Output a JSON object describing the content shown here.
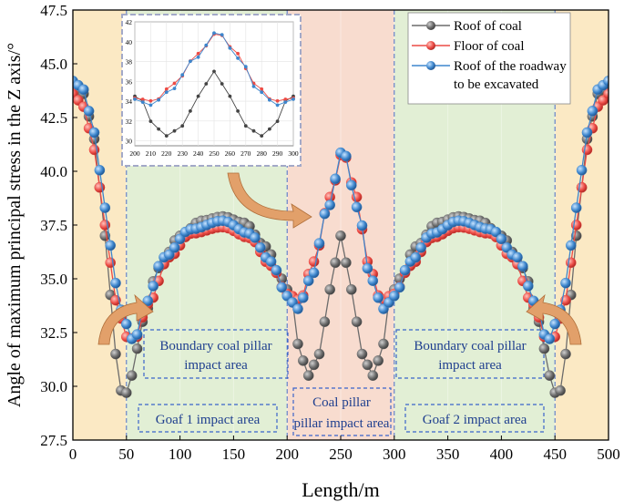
{
  "chart_data": {
    "type": "line",
    "title": "",
    "xlabel": "Length/m",
    "ylabel": "Angle of maximum principal stress in the Z axis/°",
    "xlim": [
      0,
      500
    ],
    "ylim": [
      27.5,
      47.5
    ],
    "x_ticks": [
      "0",
      "50",
      "100",
      "150",
      "200",
      "250",
      "300",
      "350",
      "400",
      "450",
      "500"
    ],
    "y_ticks": [
      "27.5",
      "30.0",
      "32.5",
      "35.0",
      "37.5",
      "40.0",
      "42.5",
      "45.0",
      "47.5"
    ],
    "regions": [
      {
        "from": 0,
        "to": 50,
        "color": "#fbe9c4"
      },
      {
        "from": 50,
        "to": 200,
        "color": "#e2efd5"
      },
      {
        "from": 200,
        "to": 300,
        "color": "#f8dccf"
      },
      {
        "from": 300,
        "to": 450,
        "color": "#e2efd5"
      },
      {
        "from": 450,
        "to": 500,
        "color": "#fbe9c4"
      }
    ],
    "annotations": {
      "boundary_left": [
        "Boundary coal pillar",
        "impact area"
      ],
      "boundary_right": [
        "Boundary coal pillar",
        "impact area"
      ],
      "goaf1": "Goaf 1 impact area",
      "goaf2": "Goaf 2 impact area",
      "coal_pillar": [
        "Coal pillar",
        "pillar impact area"
      ]
    },
    "series": [
      {
        "name": "Roof of coal",
        "color": "#6b6b6b",
        "points": [
          [
            0,
            44
          ],
          [
            10,
            43.6
          ],
          [
            20,
            41.5
          ],
          [
            30,
            37
          ],
          [
            40,
            31.5
          ],
          [
            45,
            29.8
          ],
          [
            50,
            29.7
          ],
          [
            55,
            30.5
          ],
          [
            65,
            33
          ],
          [
            80,
            35.5
          ],
          [
            100,
            37
          ],
          [
            120,
            37.7
          ],
          [
            140,
            37.9
          ],
          [
            160,
            37.6
          ],
          [
            180,
            36.5
          ],
          [
            195,
            35
          ],
          [
            205,
            34
          ],
          [
            212,
            31.5
          ],
          [
            220,
            30.5
          ],
          [
            230,
            31.5
          ],
          [
            240,
            34.5
          ],
          [
            250,
            37
          ],
          [
            260,
            34.5
          ],
          [
            270,
            31.5
          ],
          [
            280,
            30.5
          ],
          [
            288,
            31.5
          ],
          [
            295,
            34
          ],
          [
            305,
            35
          ],
          [
            320,
            36.5
          ],
          [
            340,
            37.6
          ],
          [
            360,
            37.9
          ],
          [
            380,
            37.7
          ],
          [
            400,
            37
          ],
          [
            420,
            35.5
          ],
          [
            435,
            33
          ],
          [
            445,
            30.5
          ],
          [
            450,
            29.7
          ],
          [
            455,
            29.8
          ],
          [
            460,
            31.5
          ],
          [
            470,
            37
          ],
          [
            480,
            41.5
          ],
          [
            490,
            43.6
          ],
          [
            500,
            44
          ]
        ]
      },
      {
        "name": "Floor of coal",
        "color": "#ec4b45",
        "points": [
          [
            0,
            43.6
          ],
          [
            10,
            43
          ],
          [
            20,
            41
          ],
          [
            30,
            37.5
          ],
          [
            40,
            34
          ],
          [
            50,
            32.3
          ],
          [
            58,
            32.2
          ],
          [
            70,
            33.8
          ],
          [
            90,
            36
          ],
          [
            110,
            37.1
          ],
          [
            140,
            37.4
          ],
          [
            165,
            36.9
          ],
          [
            185,
            35.6
          ],
          [
            200,
            34.3
          ],
          [
            212,
            34
          ],
          [
            225,
            35.8
          ],
          [
            240,
            38.8
          ],
          [
            252,
            40.9
          ],
          [
            265,
            38.8
          ],
          [
            275,
            35.8
          ],
          [
            288,
            34
          ],
          [
            300,
            34.3
          ],
          [
            315,
            35.6
          ],
          [
            335,
            36.9
          ],
          [
            360,
            37.4
          ],
          [
            390,
            37.1
          ],
          [
            410,
            36
          ],
          [
            430,
            33.8
          ],
          [
            442,
            32.2
          ],
          [
            450,
            32.3
          ],
          [
            460,
            34
          ],
          [
            470,
            37.5
          ],
          [
            480,
            41
          ],
          [
            490,
            43
          ],
          [
            500,
            43.6
          ]
        ]
      },
      {
        "name": "Roof of the roadway to be excavated",
        "color": "#3d86cd",
        "points": [
          [
            0,
            44.2
          ],
          [
            10,
            43.8
          ],
          [
            20,
            41.8
          ],
          [
            30,
            38.3
          ],
          [
            40,
            34.8
          ],
          [
            48,
            33
          ],
          [
            57,
            32.1
          ],
          [
            68,
            33.9
          ],
          [
            85,
            36
          ],
          [
            110,
            37.3
          ],
          [
            140,
            37.7
          ],
          [
            165,
            37.1
          ],
          [
            185,
            35.8
          ],
          [
            200,
            34.2
          ],
          [
            210,
            33.6
          ],
          [
            222,
            35
          ],
          [
            238,
            38.3
          ],
          [
            252,
            41
          ],
          [
            266,
            38.3
          ],
          [
            278,
            35
          ],
          [
            290,
            33.6
          ],
          [
            300,
            34.2
          ],
          [
            315,
            35.8
          ],
          [
            335,
            37.1
          ],
          [
            360,
            37.7
          ],
          [
            390,
            37.3
          ],
          [
            415,
            36
          ],
          [
            432,
            33.9
          ],
          [
            443,
            32.1
          ],
          [
            452,
            33
          ],
          [
            460,
            34.8
          ],
          [
            470,
            38.3
          ],
          [
            480,
            41.8
          ],
          [
            490,
            43.8
          ],
          [
            500,
            44.2
          ]
        ]
      }
    ],
    "inset": {
      "xlim": [
        200,
        300
      ],
      "ylim": [
        29.5,
        42
      ],
      "x_ticks": [
        "200",
        "210",
        "220",
        "230",
        "240",
        "250",
        "260",
        "270",
        "280",
        "290",
        "300"
      ],
      "y_ticks": [
        "30",
        "32",
        "34",
        "36",
        "38",
        "40",
        "42"
      ]
    }
  }
}
